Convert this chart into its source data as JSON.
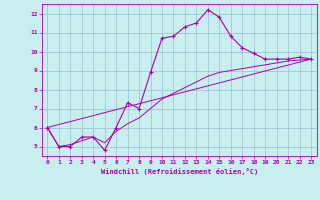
{
  "xlabel": "Windchill (Refroidissement éolien,°C)",
  "bg_color": "#c8eef0",
  "grid_color": "#9bbfcc",
  "line_color": "#aa00aa",
  "spine_color": "#aa00aa",
  "xlim": [
    -0.5,
    23.5
  ],
  "ylim": [
    4.5,
    12.5
  ],
  "xticks": [
    0,
    1,
    2,
    3,
    4,
    5,
    6,
    7,
    8,
    9,
    10,
    11,
    12,
    13,
    14,
    15,
    16,
    17,
    18,
    19,
    20,
    21,
    22,
    23
  ],
  "yticks": [
    5,
    6,
    7,
    8,
    9,
    10,
    11,
    12
  ],
  "series1_x": [
    0,
    1,
    2,
    3,
    4,
    5,
    6,
    7,
    8,
    9,
    10,
    11,
    12,
    13,
    14,
    15,
    16,
    17,
    18,
    19,
    20,
    21,
    22,
    23
  ],
  "series1_y": [
    6.0,
    5.0,
    5.0,
    5.5,
    5.5,
    4.8,
    6.0,
    7.3,
    7.0,
    8.9,
    10.7,
    10.8,
    11.3,
    11.5,
    12.2,
    11.8,
    10.8,
    10.2,
    9.9,
    9.6,
    9.6,
    9.6,
    9.7,
    9.6
  ],
  "series2_x": [
    0,
    23
  ],
  "series2_y": [
    6.0,
    9.6
  ],
  "series3_x": [
    0,
    1,
    2,
    3,
    4,
    5,
    6,
    7,
    8,
    9,
    10,
    11,
    12,
    13,
    14,
    15,
    16,
    17,
    18,
    19,
    20,
    21,
    22,
    23
  ],
  "series3_y": [
    6.0,
    5.0,
    5.1,
    5.3,
    5.5,
    5.2,
    5.8,
    6.2,
    6.5,
    7.0,
    7.5,
    7.8,
    8.1,
    8.4,
    8.7,
    8.9,
    9.0,
    9.1,
    9.2,
    9.3,
    9.4,
    9.5,
    9.55,
    9.6
  ]
}
